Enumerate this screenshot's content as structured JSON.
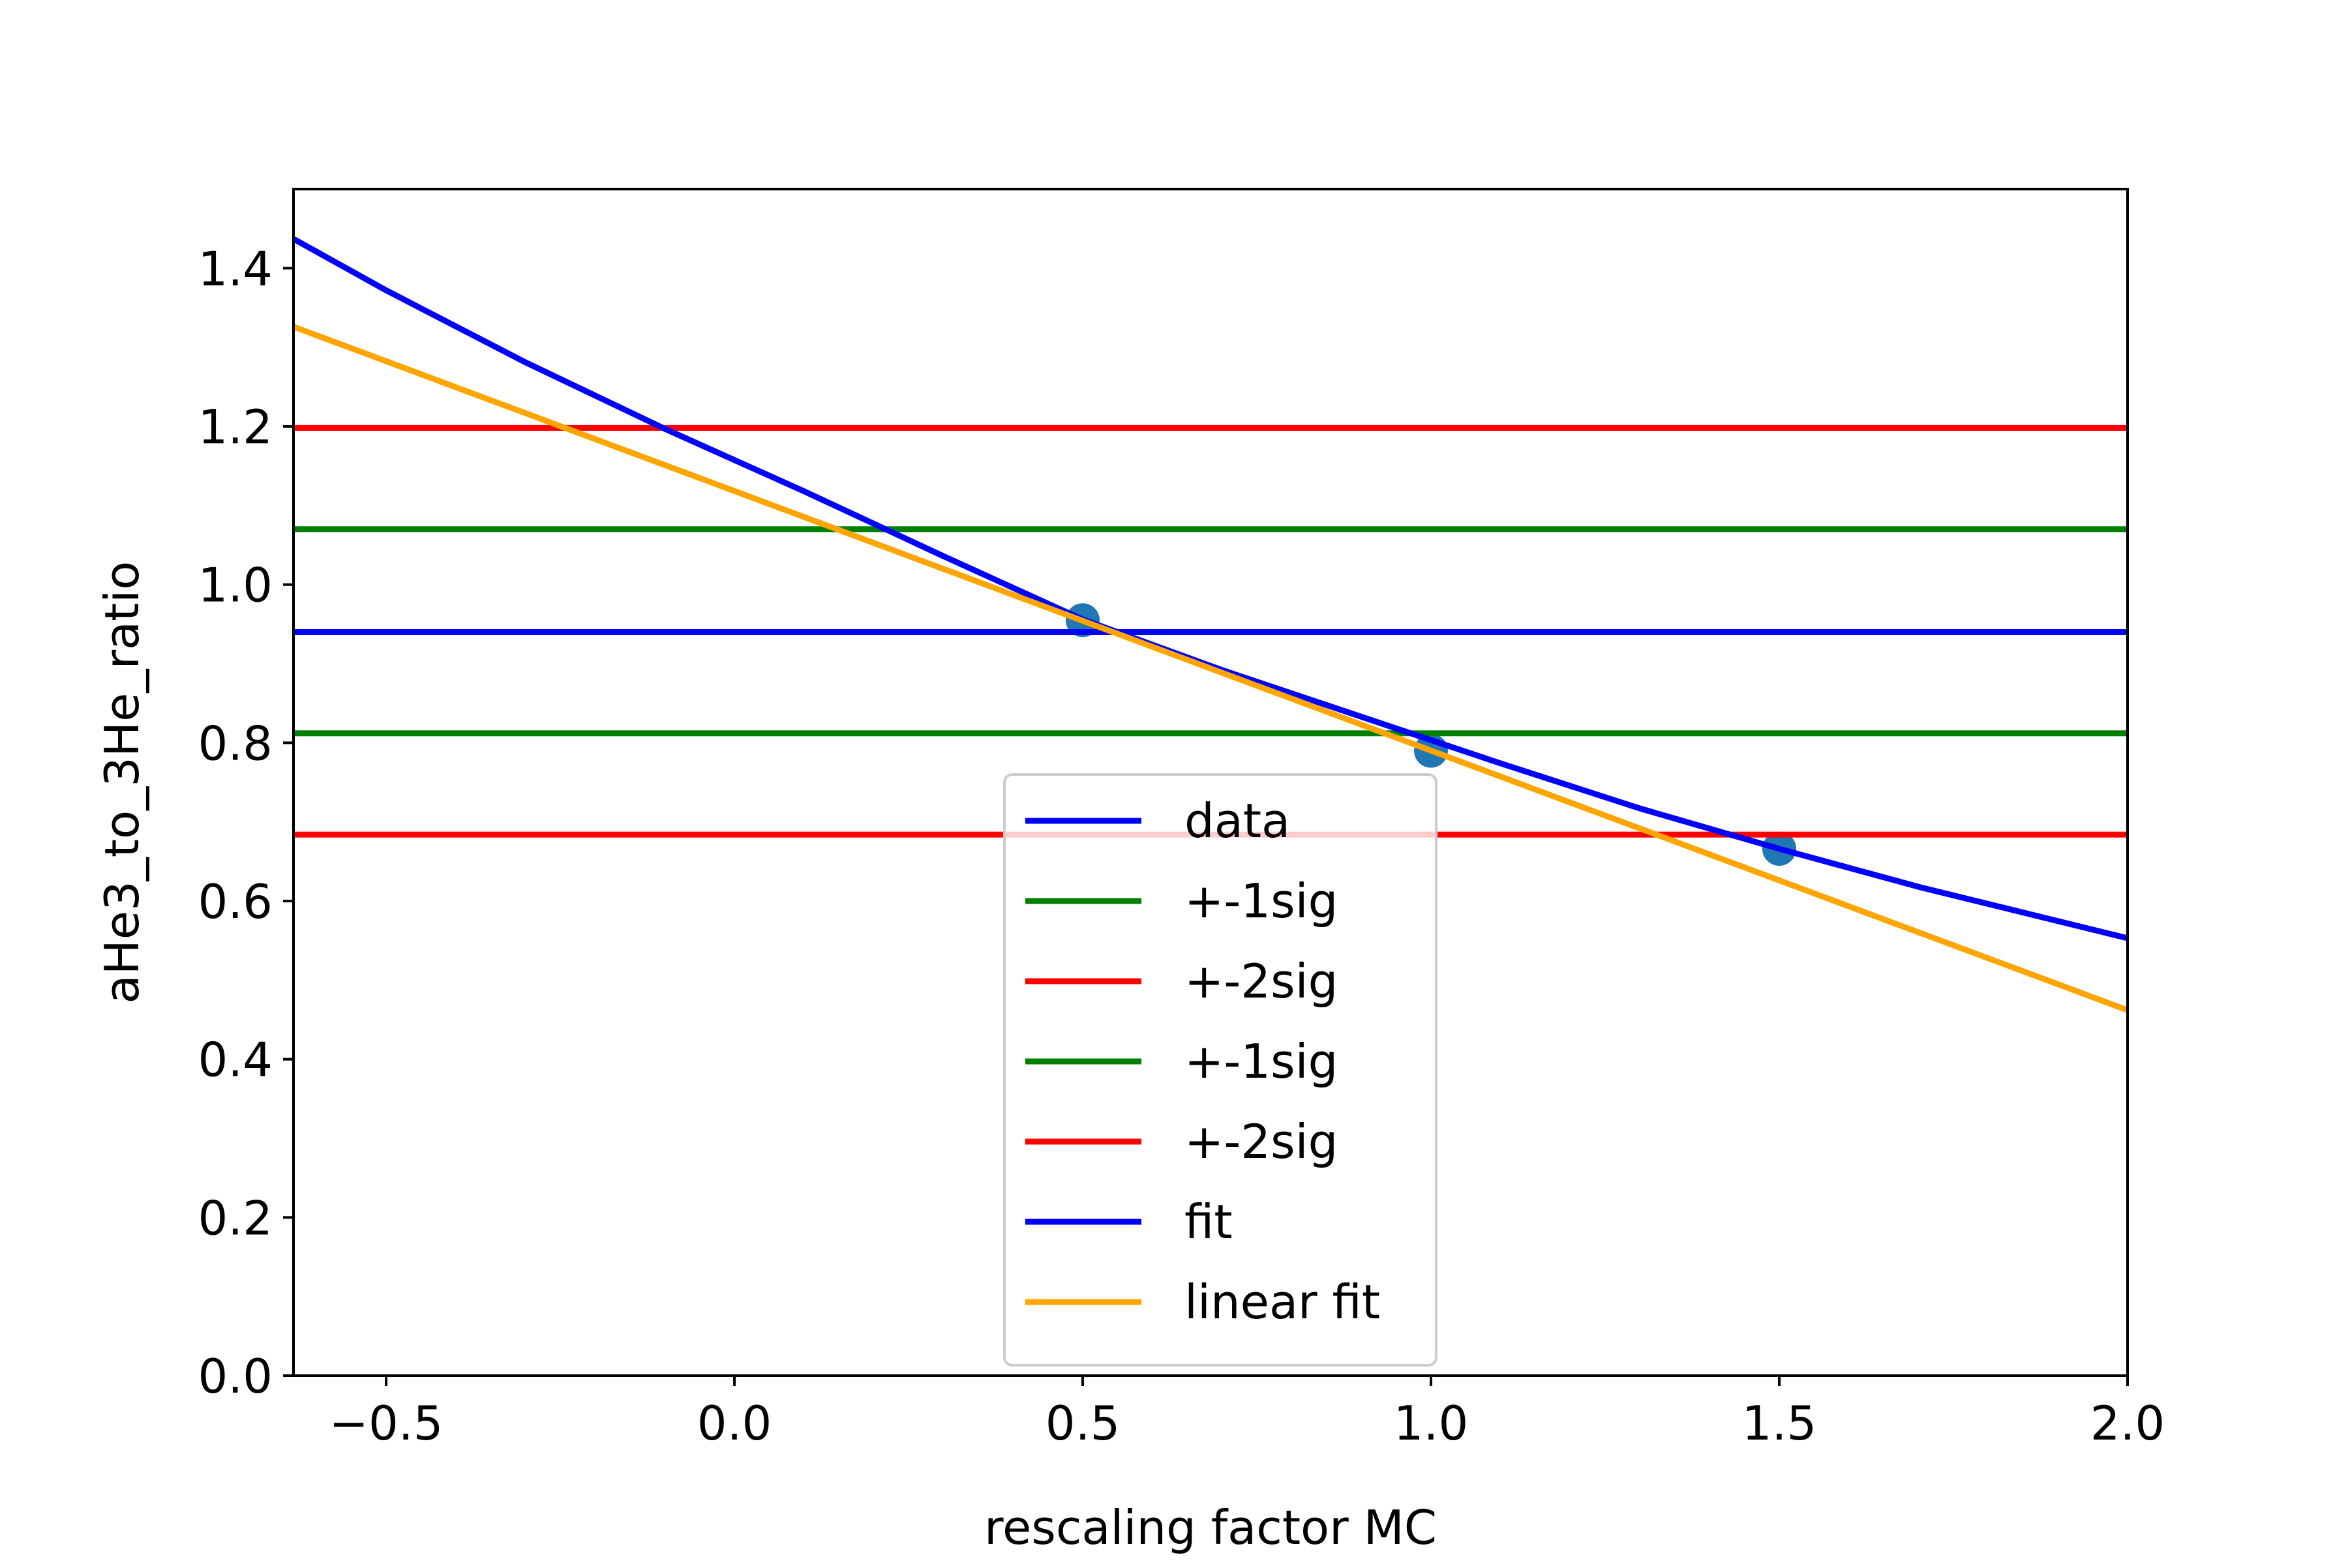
{
  "chart_data": {
    "type": "line",
    "xlabel": "rescaling factor MC",
    "ylabel": "aHe3_to_3He_ratio",
    "xlim": [
      -0.633,
      2.0
    ],
    "ylim": [
      0.0,
      1.5
    ],
    "x_ticks": [
      -0.5,
      0.0,
      0.5,
      1.0,
      1.5,
      2.0
    ],
    "x_tick_labels": [
      "−0.5",
      "0.0",
      "0.5",
      "1.0",
      "1.5",
      "2.0"
    ],
    "y_ticks": [
      0.0,
      0.2,
      0.4,
      0.6,
      0.8,
      1.0,
      1.2,
      1.4
    ],
    "y_tick_labels": [
      "0.0",
      "0.2",
      "0.4",
      "0.6",
      "0.8",
      "1.0",
      "1.2",
      "1.4"
    ],
    "grid": false,
    "legend_position": "bottom-center",
    "points": {
      "color": "#1f77b4",
      "x": [
        0.5,
        1.0,
        1.5
      ],
      "y": [
        0.955,
        0.79,
        0.666
      ]
    },
    "series": [
      {
        "name": "data",
        "color": "#0000ff",
        "kind": "hline",
        "y": 0.94
      },
      {
        "name": "+-1sig",
        "color": "#008000",
        "kind": "hline",
        "y": 1.07
      },
      {
        "name": "+-2sig",
        "color": "#ff0000",
        "kind": "hline",
        "y": 1.198
      },
      {
        "name": "+-1sig",
        "color": "#008000",
        "kind": "hline",
        "y": 0.812
      },
      {
        "name": "+-2sig",
        "color": "#ff0000",
        "kind": "hline",
        "y": 0.684
      },
      {
        "name": "fit",
        "color": "#0000ff",
        "kind": "line",
        "x": [
          -0.633,
          -0.5,
          -0.3,
          -0.1,
          0.1,
          0.3,
          0.5,
          0.7,
          0.9,
          1.1,
          1.3,
          1.5,
          1.7,
          2.0
        ],
        "y": [
          1.437,
          1.372,
          1.281,
          1.197,
          1.118,
          1.036,
          0.956,
          0.892,
          0.833,
          0.774,
          0.717,
          0.666,
          0.618,
          0.553
        ]
      },
      {
        "name": "linear fit",
        "color": "#ffa500",
        "kind": "line",
        "x": [
          -0.633,
          2.0
        ],
        "y": [
          1.326,
          0.462
        ]
      }
    ]
  }
}
